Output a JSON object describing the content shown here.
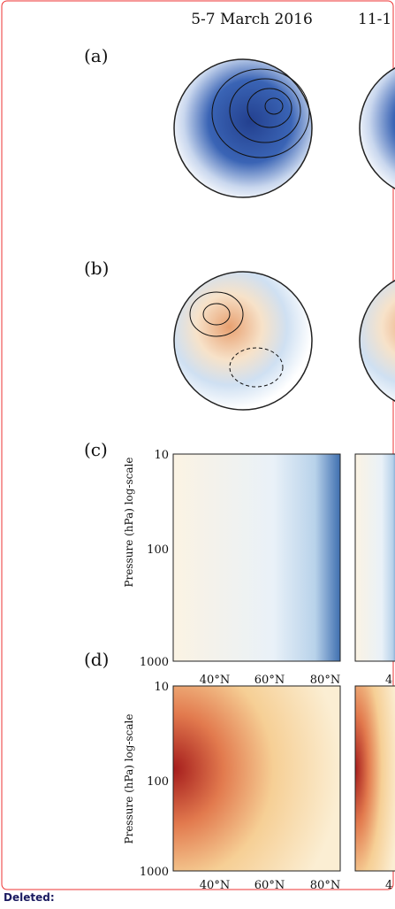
{
  "columns": [
    "5-7 March 2016",
    "11-1"
  ],
  "panels": [
    {
      "label": "(a)"
    },
    {
      "label": "(b)"
    },
    {
      "label": "(c)",
      "y_axis_label": "Pressure (hPa) log-scale",
      "yticks": [
        "10",
        "100",
        "1000"
      ],
      "xticks": [
        "40°N",
        "60°N",
        "80°N"
      ],
      "next_xtick": "4"
    },
    {
      "label": "(d)",
      "y_axis_label": "Pressure (hPa) log-scale",
      "yticks": [
        "10",
        "100",
        "1000"
      ],
      "xticks": [
        "40°N",
        "60°N",
        "80°N"
      ],
      "next_xtick": "4"
    }
  ],
  "note": "Deleted:"
}
